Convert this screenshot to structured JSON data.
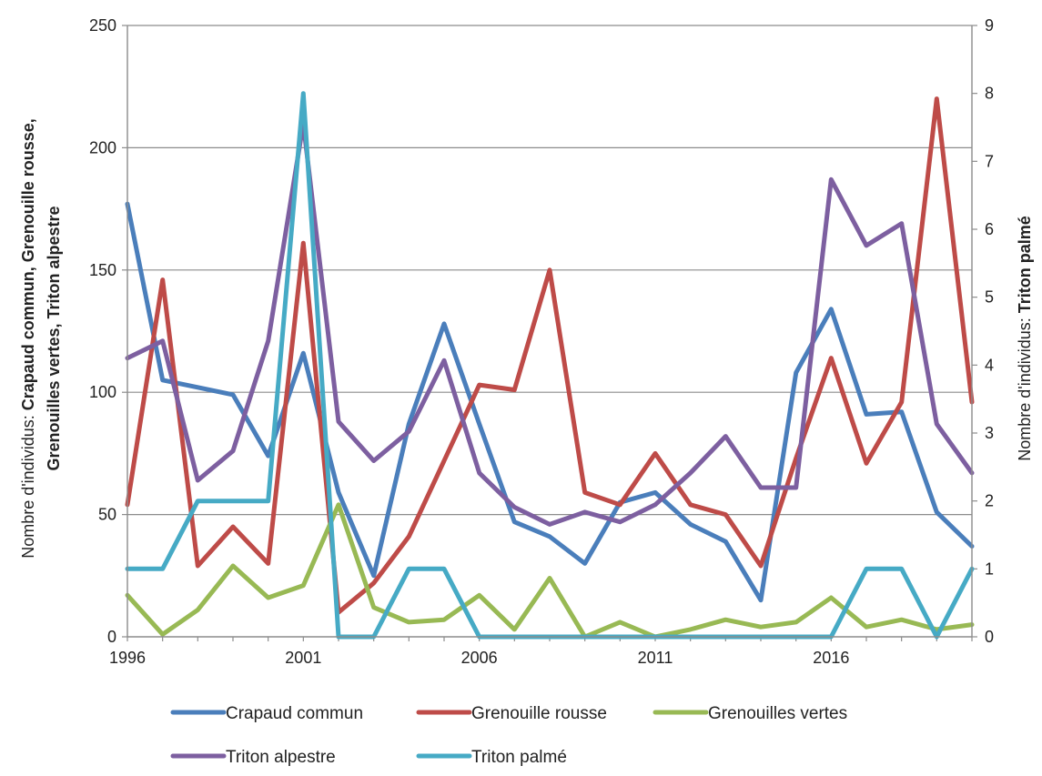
{
  "chart_data": {
    "type": "line",
    "x": [
      1996,
      1997,
      1998,
      1999,
      2000,
      2001,
      2002,
      2003,
      2004,
      2005,
      2006,
      2007,
      2008,
      2009,
      2010,
      2011,
      2012,
      2013,
      2014,
      2015,
      2016,
      2017,
      2018,
      2019,
      2020
    ],
    "x_ticks": [
      "1996",
      "2001",
      "2006",
      "2011",
      "2016"
    ],
    "y_left": {
      "range": [
        0,
        250
      ],
      "ticks": [
        "0",
        "50",
        "100",
        "150",
        "200",
        "250"
      ]
    },
    "y_right": {
      "range": [
        0,
        9
      ],
      "ticks": [
        "0",
        "1",
        "2",
        "3",
        "4",
        "5",
        "6",
        "7",
        "8",
        "9"
      ]
    },
    "y_left_label": {
      "prefix": "Nombre d'individus: ",
      "bold_line1": "Crapaud commun, Grenouille rousse,",
      "bold_line2": "Grenouilles vertes, Triton alpestre"
    },
    "y_right_label": {
      "prefix": "Nombre d'individus: ",
      "bold": "Triton palmé"
    },
    "grid": "horizontal",
    "legend_position": "bottom",
    "series": [
      {
        "name": "Crapaud commun",
        "axis": "left",
        "color": "#4a7ebb",
        "values": [
          177,
          105,
          102,
          99,
          74,
          116,
          59,
          25,
          87,
          128,
          87,
          47,
          41,
          30,
          55,
          59,
          46,
          39,
          15,
          108,
          134,
          91,
          92,
          51,
          37
        ]
      },
      {
        "name": "Grenouille rousse",
        "axis": "left",
        "color": "#be4b48",
        "values": [
          54,
          146,
          29,
          45,
          30,
          161,
          10,
          22,
          41,
          72,
          103,
          101,
          150,
          59,
          54,
          75,
          54,
          50,
          29,
          73,
          114,
          71,
          96,
          220,
          96
        ]
      },
      {
        "name": "Grenouilles vertes",
        "axis": "left",
        "color": "#98b954",
        "values": [
          17,
          1,
          11,
          29,
          16,
          21,
          54,
          12,
          6,
          7,
          17,
          3,
          24,
          0,
          6,
          0,
          3,
          7,
          4,
          6,
          16,
          4,
          7,
          3,
          5
        ]
      },
      {
        "name": "Triton alpestre",
        "axis": "left",
        "color": "#7d5fa0",
        "values": [
          114,
          121,
          64,
          76,
          121,
          210,
          88,
          72,
          84,
          113,
          67,
          53,
          46,
          51,
          47,
          54,
          67,
          82,
          61,
          61,
          187,
          160,
          169,
          87,
          67
        ]
      },
      {
        "name": "Triton palmé",
        "axis": "right",
        "color": "#46aac5",
        "values": [
          1,
          1,
          2,
          2,
          2,
          8,
          0,
          0,
          1,
          1,
          0,
          0,
          0,
          0,
          0,
          0,
          0,
          0,
          0,
          0,
          0,
          1,
          1,
          0,
          1
        ]
      }
    ]
  }
}
